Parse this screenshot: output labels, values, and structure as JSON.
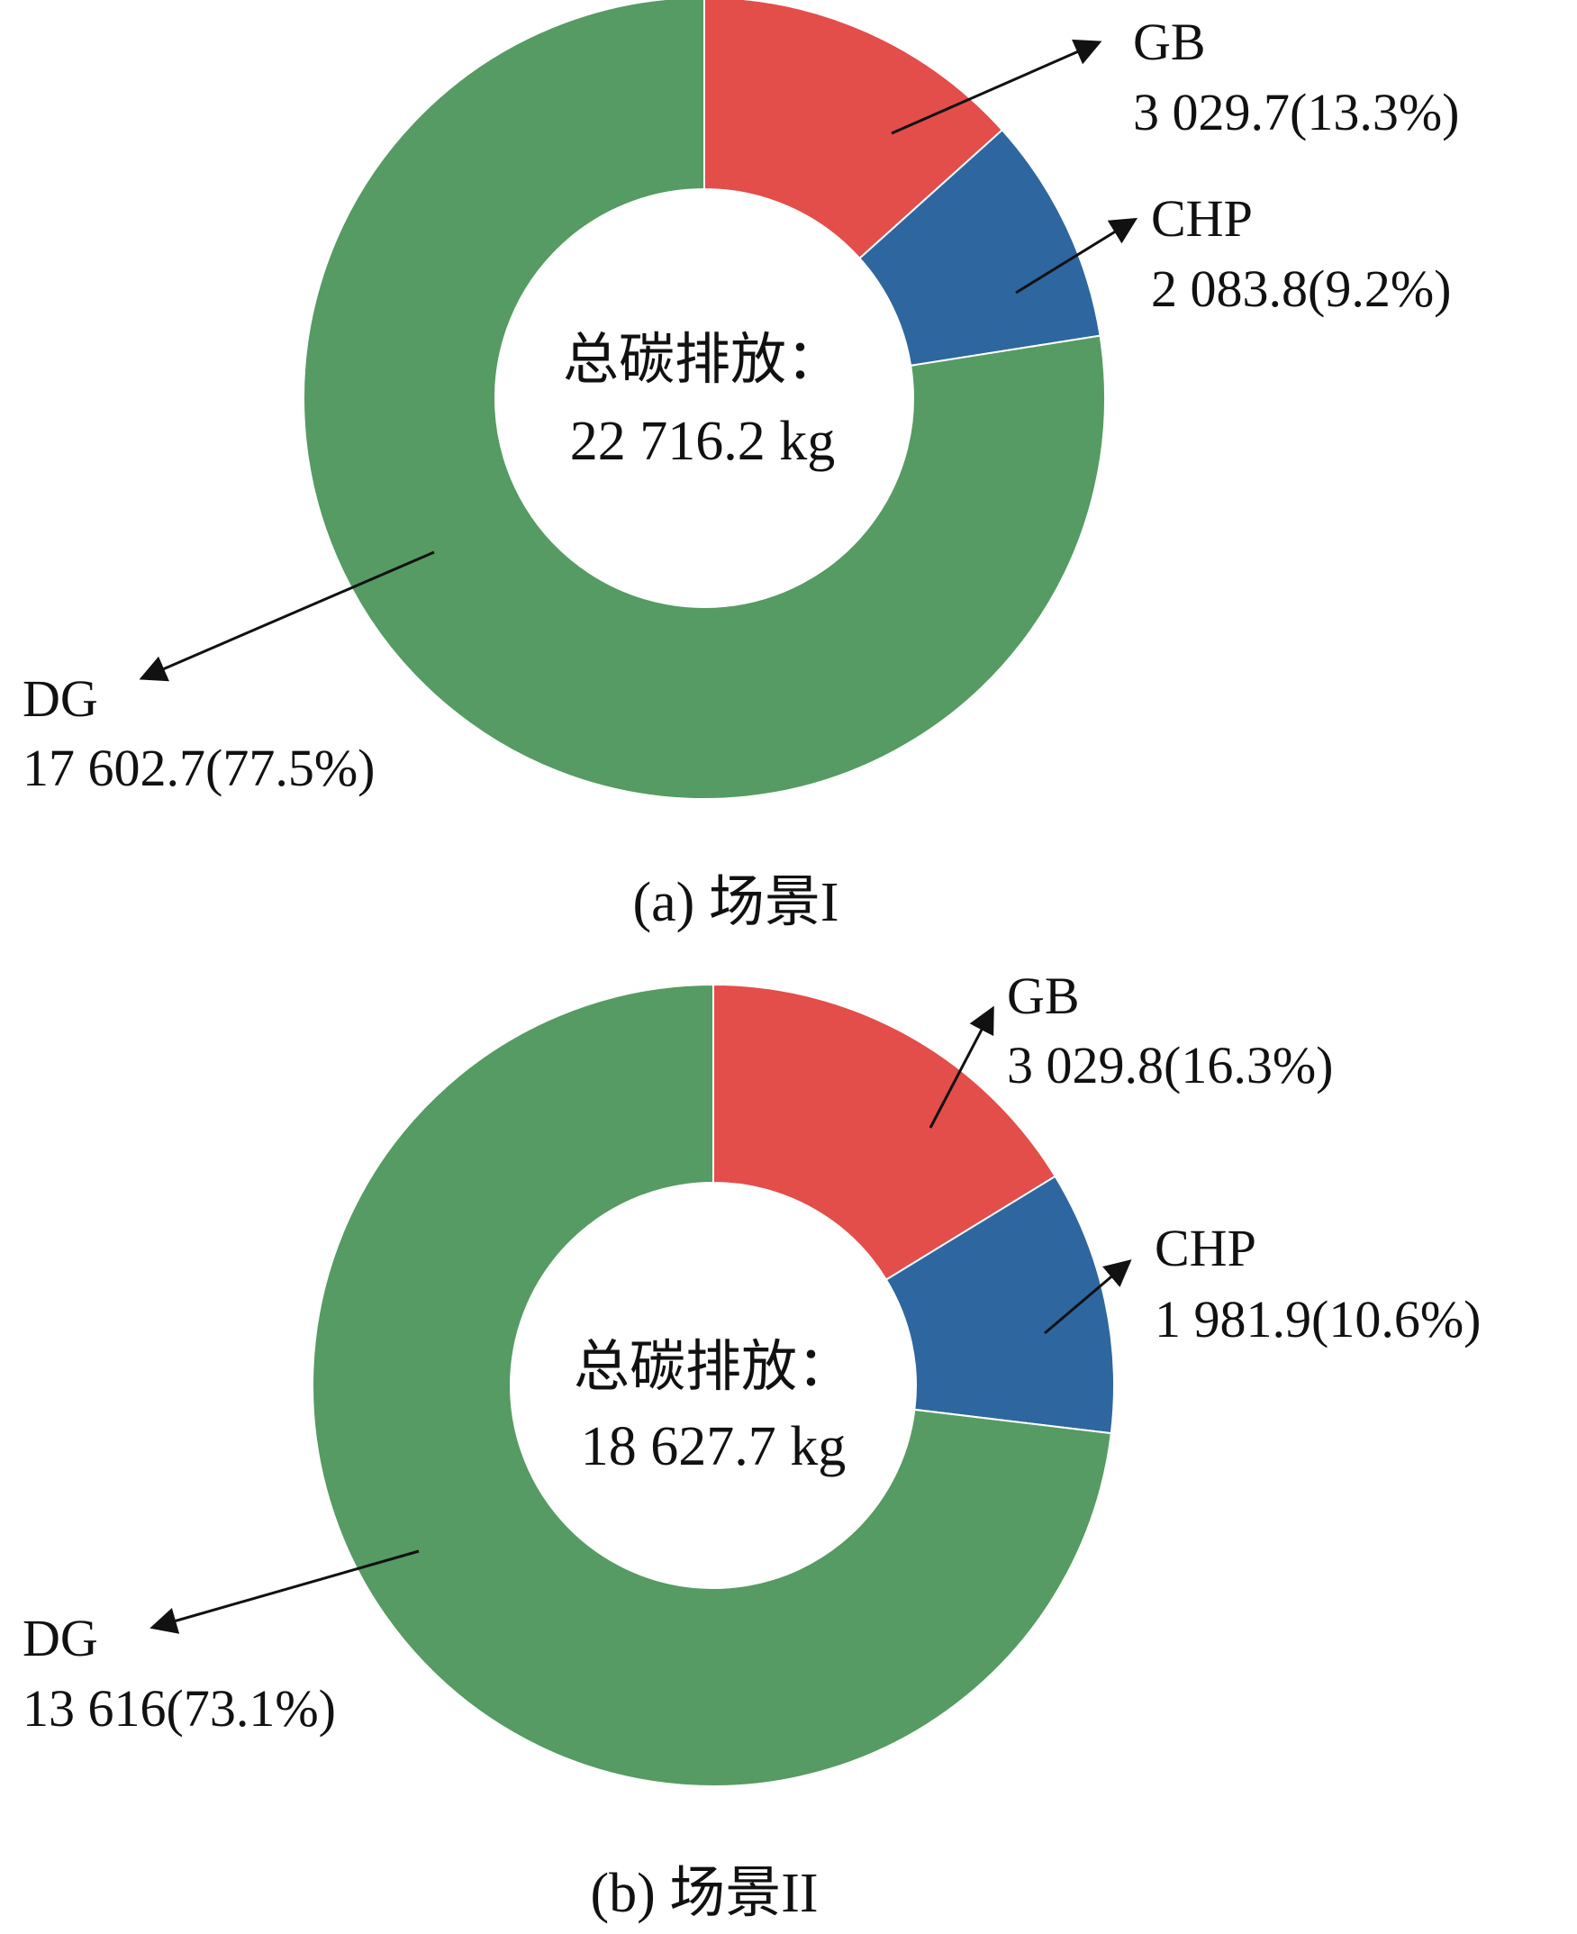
{
  "colors": {
    "GB": "#e34d4a",
    "CHP": "#2e66a0",
    "DG": "#559b63",
    "arrow": "#111111"
  },
  "chart_data": [
    {
      "type": "pie",
      "donut": true,
      "caption": "(a) 场景I",
      "center_label": "总碳排放：",
      "center_value": "22 716.2 kg",
      "slices": [
        {
          "name": "GB",
          "value": 3029.7,
          "percent": 13.3,
          "label": "3 029.7(13.3%)"
        },
        {
          "name": "CHP",
          "value": 2083.8,
          "percent": 9.2,
          "label": "2 083.8(9.2%)"
        },
        {
          "name": "DG",
          "value": 17602.7,
          "percent": 77.5,
          "label": "17 602.7(77.5%)"
        }
      ]
    },
    {
      "type": "pie",
      "donut": true,
      "caption": "(b) 场景II",
      "center_label": "总碳排放：",
      "center_value": "18 627.7 kg",
      "slices": [
        {
          "name": "GB",
          "value": 3029.8,
          "percent": 16.3,
          "label": "3 029.8(16.3%)"
        },
        {
          "name": "CHP",
          "value": 1981.9,
          "percent": 10.6,
          "label": "1 981.9(10.6%)"
        },
        {
          "name": "DG",
          "value": 13616,
          "percent": 73.1,
          "label": "13 616(73.1%)"
        }
      ]
    }
  ]
}
